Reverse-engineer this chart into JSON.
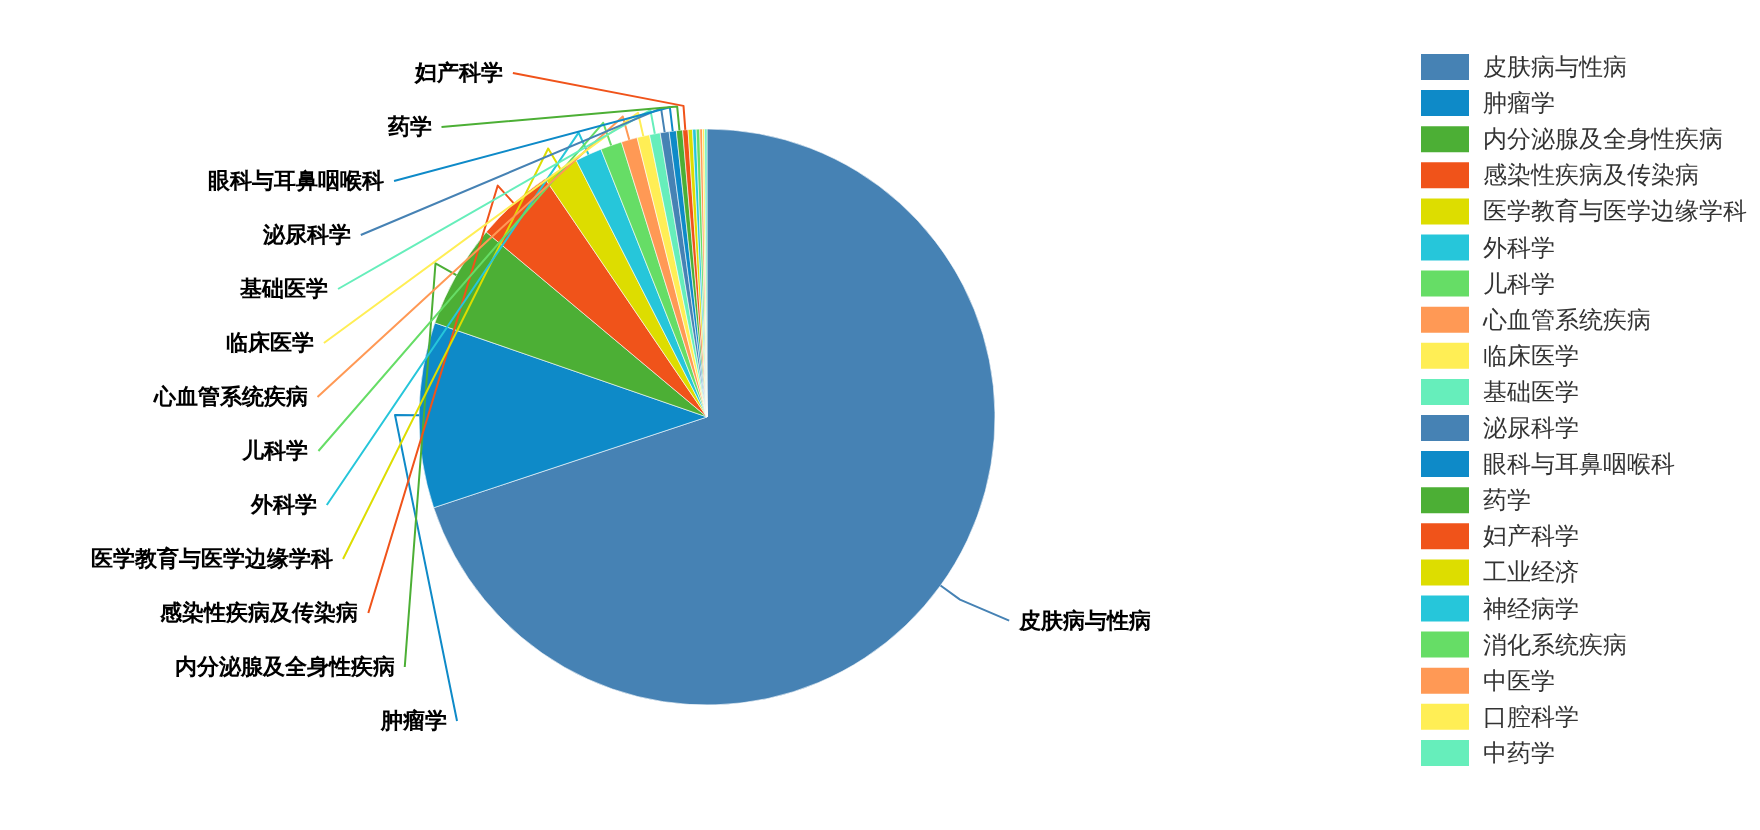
{
  "chart_data": {
    "type": "pie",
    "categories": [
      "皮肤病与性病",
      "肿瘤学",
      "内分泌腺及全身性疾病",
      "感染性疾病及传染病",
      "医学教育与医学边缘学科",
      "外科学",
      "儿科学",
      "心血管系统疾病",
      "临床医学",
      "基础医学",
      "泌尿科学",
      "眼科与耳鼻咽喉科",
      "药学",
      "妇产科学",
      "工业经济",
      "神经病学",
      "消化系统疾病",
      "中医学",
      "口腔科学",
      "中药学"
    ],
    "values": [
      69.9,
      10.4,
      5.8,
      4.4,
      2.0,
      1.5,
      1.2,
      0.9,
      0.7,
      0.6,
      0.5,
      0.4,
      0.35,
      0.3,
      0.25,
      0.2,
      0.2,
      0.15,
      0.12,
      0.13
    ],
    "colors": [
      "#4682b4",
      "#0e8ac8",
      "#4caf35",
      "#f0531a",
      "#dddd00",
      "#26c6da",
      "#66dd66",
      "#ff9955",
      "#ffee55",
      "#66eebb",
      "#4682b4",
      "#0e8ac8",
      "#4caf35",
      "#f0531a",
      "#dddd00",
      "#26c6da",
      "#66dd66",
      "#ff9955",
      "#ffee55",
      "#66eebb"
    ],
    "legend": "right"
  }
}
